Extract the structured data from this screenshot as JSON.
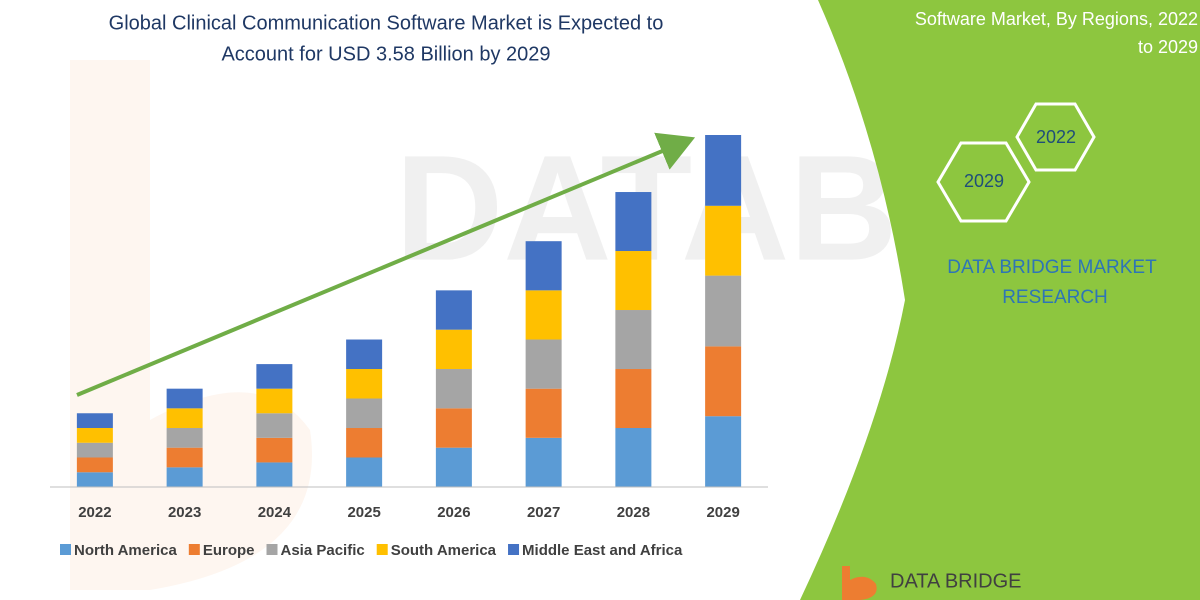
{
  "title_lines": [
    "Global Clinical Communication Software Market is Expected to",
    "Account for USD 3.58 Billion by 2029"
  ],
  "side_panel": {
    "heading_lines": [
      "Software Market, By Regions, 2022",
      "to 2029"
    ],
    "hexagons": [
      "2022",
      "2029"
    ],
    "brand_lines": [
      "DATA BRIDGE MARKET",
      "RESEARCH"
    ],
    "logo": "DATA BRIDGE"
  },
  "chart_data": {
    "type": "stacked_bar",
    "categories": [
      "2022",
      "2023",
      "2024",
      "2025",
      "2026",
      "2027",
      "2028",
      "2029"
    ],
    "series": [
      {
        "name": "North America",
        "color": "#5b9bd5",
        "values": [
          0.15,
          0.2,
          0.25,
          0.3,
          0.4,
          0.5,
          0.6,
          0.72
        ]
      },
      {
        "name": "Europe",
        "color": "#ed7d31",
        "values": [
          0.15,
          0.2,
          0.25,
          0.3,
          0.4,
          0.5,
          0.6,
          0.71
        ]
      },
      {
        "name": "Asia Pacific",
        "color": "#a5a5a5",
        "values": [
          0.15,
          0.2,
          0.25,
          0.3,
          0.4,
          0.5,
          0.6,
          0.72
        ]
      },
      {
        "name": "South America",
        "color": "#ffc000",
        "values": [
          0.15,
          0.2,
          0.25,
          0.3,
          0.4,
          0.5,
          0.6,
          0.71
        ]
      },
      {
        "name": "Middle East and Africa",
        "color": "#4472c4",
        "values": [
          0.15,
          0.2,
          0.25,
          0.3,
          0.4,
          0.5,
          0.6,
          0.72
        ]
      }
    ],
    "legend": "bottom"
  }
}
